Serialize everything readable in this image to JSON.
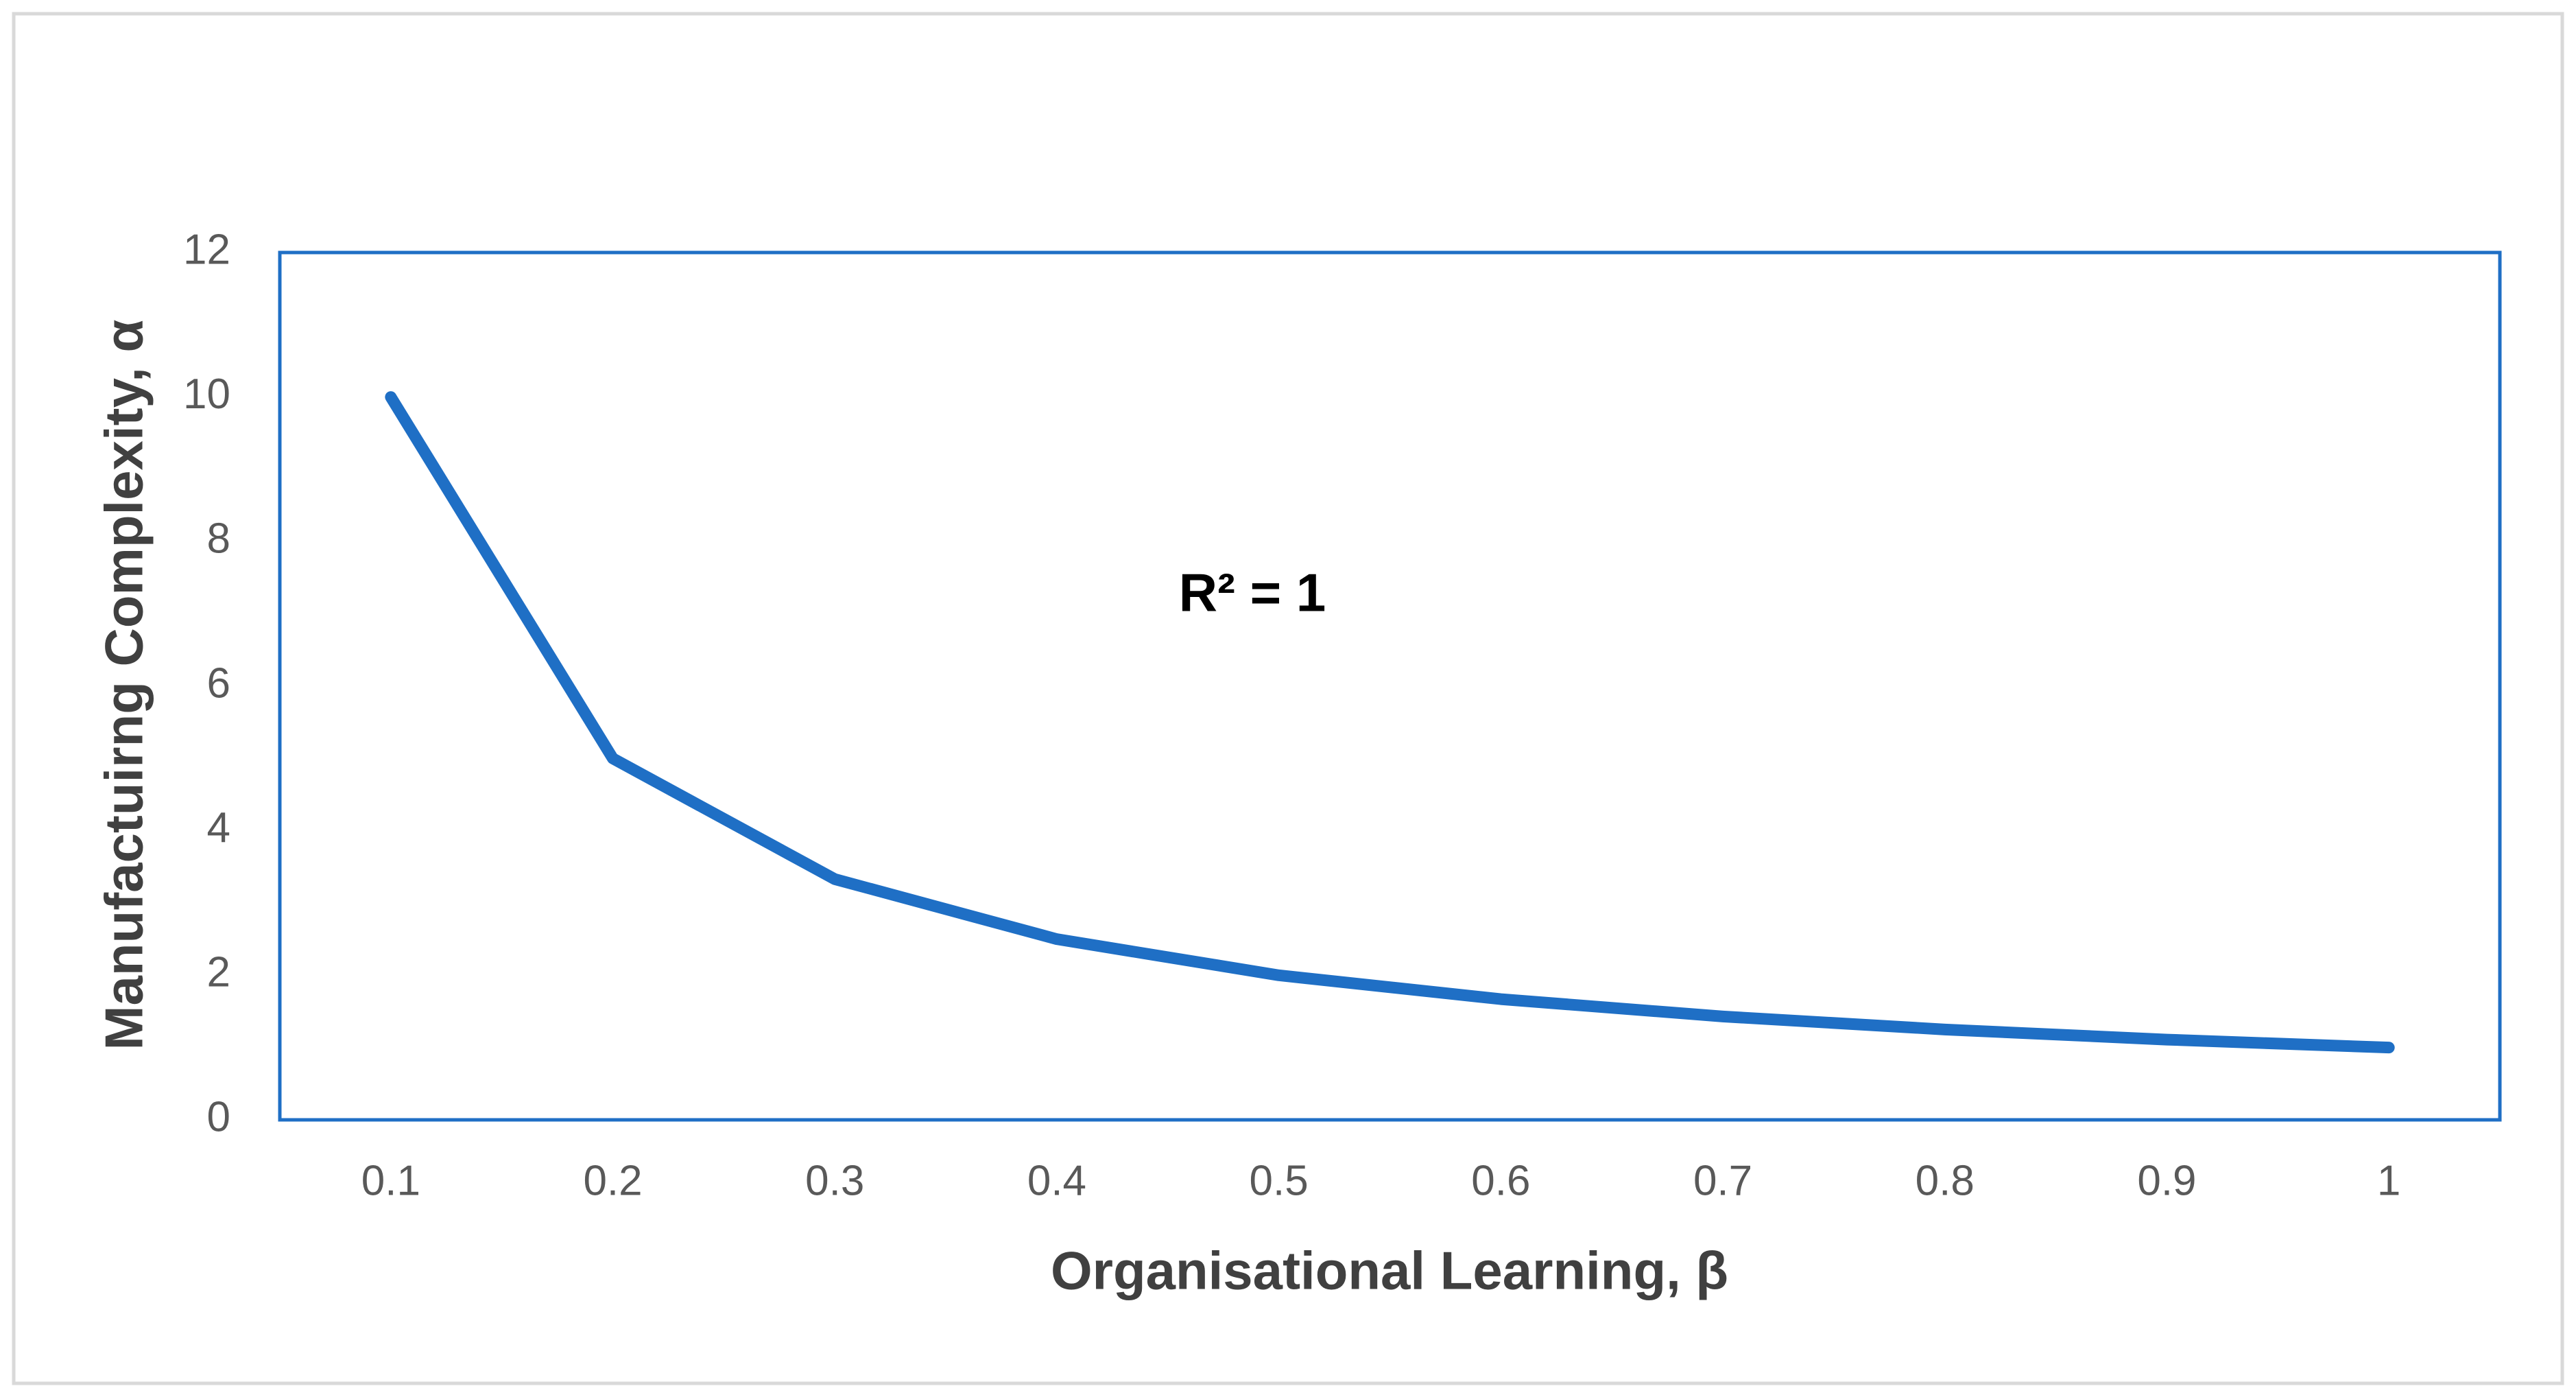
{
  "chart_data": {
    "type": "line",
    "x_label": "Organisational Learning, β",
    "y_label": "Manufactuirng Complexity, α",
    "annotation": "R² = 1",
    "categories": [
      "0.1",
      "0.2",
      "0.3",
      "0.4",
      "0.5",
      "0.6",
      "0.7",
      "0.8",
      "0.9",
      "1"
    ],
    "series": [
      {
        "name": "α",
        "color": "#1f6fc5",
        "values": [
          10,
          5,
          3.33,
          2.5,
          2,
          1.67,
          1.43,
          1.25,
          1.11,
          1
        ]
      }
    ],
    "ylim": [
      0,
      12
    ],
    "yticks": [
      0,
      2,
      4,
      6,
      8,
      10,
      12
    ],
    "grid": false
  }
}
